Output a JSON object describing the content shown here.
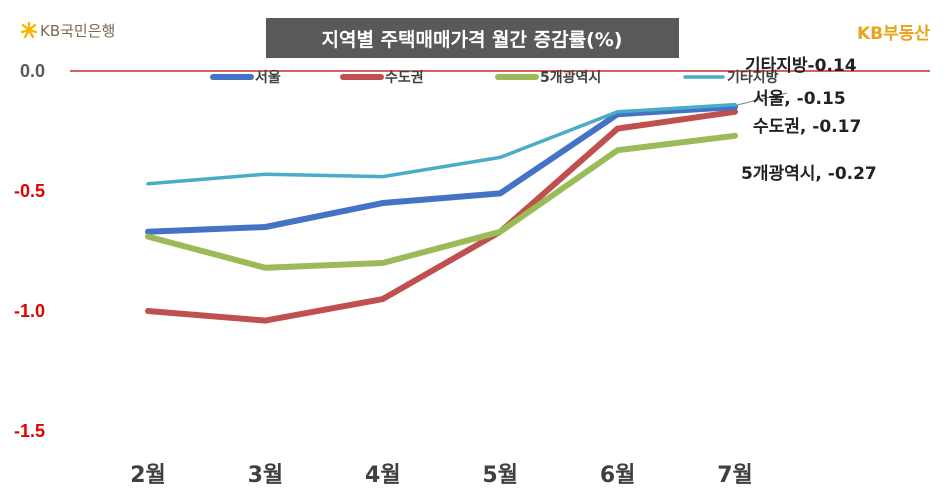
{
  "brand": {
    "bank": "KB국민은행",
    "realestate": "KB부동산",
    "colors": {
      "bank_mark": "#f5b800",
      "realestate": "#e8a317"
    }
  },
  "chart_data": {
    "type": "line",
    "title": "지역별 주택매매가격 월간 증감률(%)",
    "categories": [
      "2월",
      "3월",
      "4월",
      "5월",
      "6월",
      "7월"
    ],
    "ylim": [
      -1.5,
      0.0
    ],
    "yticks": [
      {
        "value": 0.0,
        "label": "0.0"
      },
      {
        "value": -0.5,
        "label": "-0.5"
      },
      {
        "value": -1.0,
        "label": "-1.0"
      },
      {
        "value": -1.5,
        "label": "-1.5"
      }
    ],
    "legend_position": "top",
    "series": [
      {
        "name": "서울",
        "color": "#4472c4",
        "values": [
          -0.67,
          -0.65,
          -0.55,
          -0.51,
          -0.18,
          -0.15
        ],
        "end_label": "서울, -0.15"
      },
      {
        "name": "수도권",
        "color": "#c0504d",
        "values": [
          -1.0,
          -1.04,
          -0.95,
          -0.67,
          -0.24,
          -0.17
        ],
        "end_label": "수도권, -0.17"
      },
      {
        "name": "5개광역시",
        "color": "#9bbb59",
        "values": [
          -0.69,
          -0.82,
          -0.8,
          -0.67,
          -0.33,
          -0.27
        ],
        "end_label": "5개광역시, -0.27"
      },
      {
        "name": "기타지방",
        "color": "#4bacc6",
        "values": [
          -0.47,
          -0.43,
          -0.44,
          -0.36,
          -0.17,
          -0.14
        ],
        "end_label": "기타지방-0.14"
      }
    ]
  }
}
